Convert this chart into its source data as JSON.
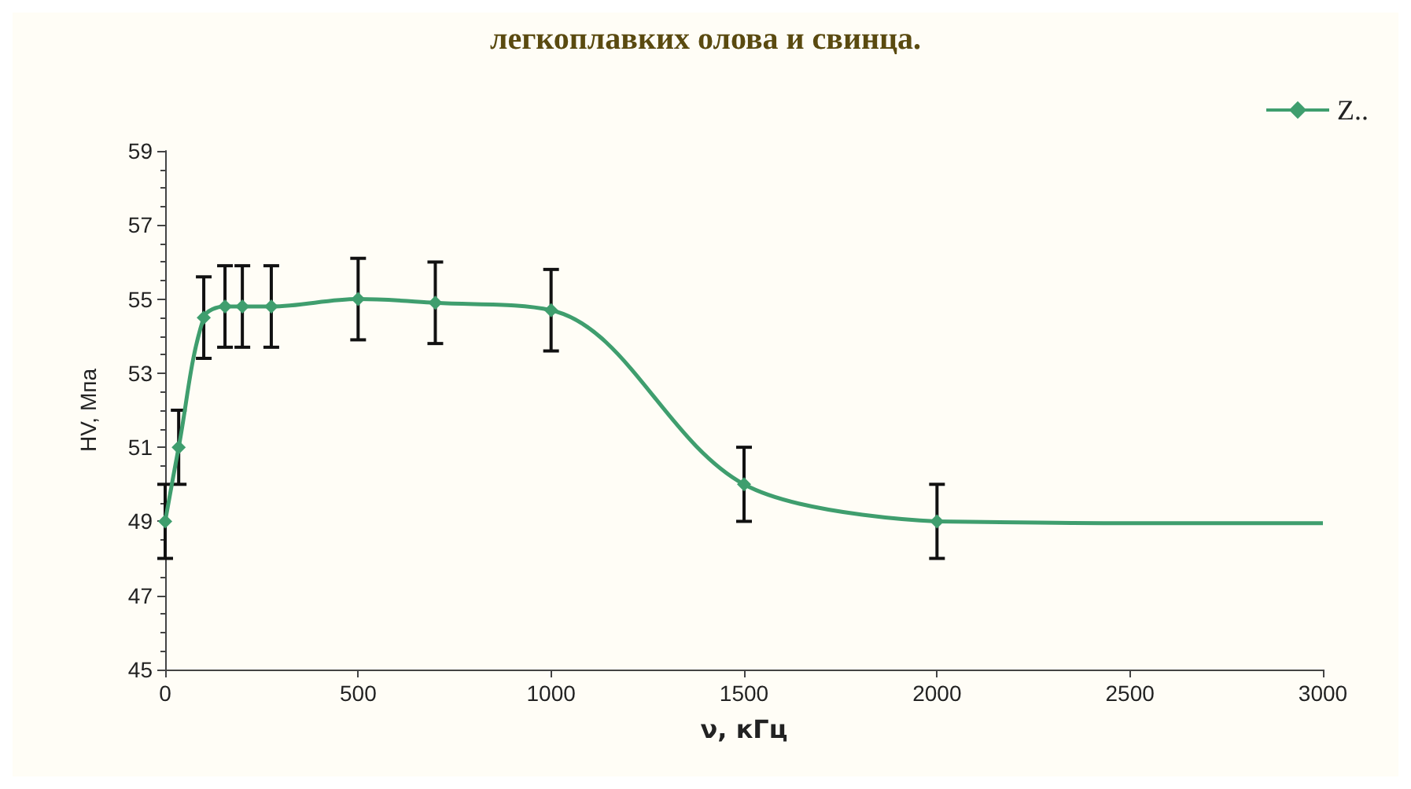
{
  "chart_data": {
    "type": "line",
    "title": "легкоплавких олова и свинца.",
    "xlabel": "ν, кГц",
    "ylabel": "HV, Мпа",
    "series": [
      {
        "name": "Z..",
        "color": "#3f9e6e",
        "x": [
          0,
          35,
          100,
          155,
          200,
          275,
          500,
          700,
          1000,
          1500,
          2000
        ],
        "values": [
          49,
          51,
          54.5,
          54.8,
          54.8,
          54.8,
          55,
          54.9,
          54.7,
          50,
          49
        ],
        "errors": [
          1,
          1,
          1.1,
          1.1,
          1.1,
          1.1,
          1.1,
          1.1,
          1.1,
          1,
          1
        ],
        "marker": "diamond"
      },
      {
        "type": "line",
        "color": "#3f9e6e",
        "x": [
          2000,
          2500,
          3000
        ],
        "values": [
          49,
          48.95,
          48.95
        ],
        "marker": "none"
      }
    ],
    "xlim": [
      0,
      3000
    ],
    "xticks": [
      0,
      500,
      1000,
      1500,
      2000,
      2500,
      3000
    ],
    "ylim": [
      45,
      59
    ],
    "yticks": [
      45,
      47,
      49,
      51,
      53,
      55,
      57,
      59
    ],
    "grid": false,
    "legend": "top right"
  }
}
